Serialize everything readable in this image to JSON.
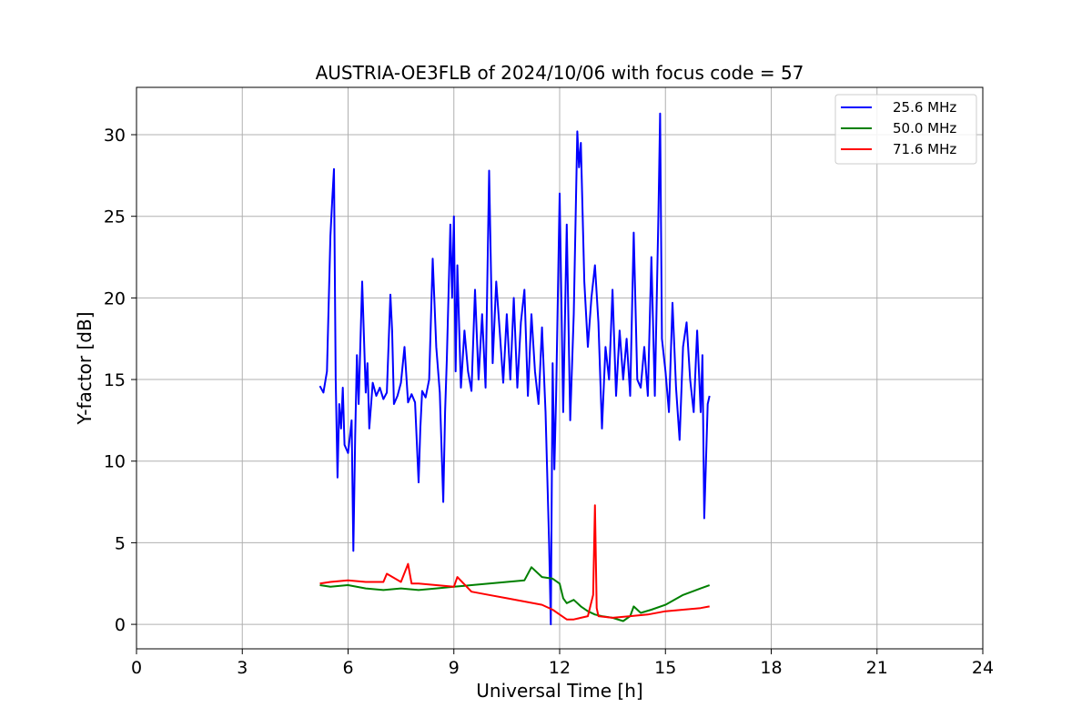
{
  "chart_data": {
    "type": "line",
    "title": "AUSTRIA-OE3FLB of 2024/10/06 with focus code = 57",
    "xlabel": "Universal Time [h]",
    "ylabel": "Y-factor [dB]",
    "xlim": [
      0,
      24
    ],
    "ylim": [
      -1.5,
      32.9
    ],
    "xticks": [
      0,
      3,
      6,
      9,
      12,
      15,
      18,
      21,
      24
    ],
    "yticks": [
      0,
      5,
      10,
      15,
      20,
      25,
      30
    ],
    "xtick_labels": [
      "0",
      "3",
      "6",
      "9",
      "12",
      "15",
      "18",
      "21",
      "24"
    ],
    "ytick_labels": [
      "0",
      "5",
      "10",
      "15",
      "20",
      "25",
      "30"
    ],
    "grid": true,
    "legend_position": "top-right",
    "series": [
      {
        "name": "25.6 MHz",
        "color": "#0000ff",
        "x": [
          5.2,
          5.3,
          5.4,
          5.5,
          5.55,
          5.6,
          5.65,
          5.7,
          5.75,
          5.8,
          5.85,
          5.9,
          6.0,
          6.1,
          6.15,
          6.2,
          6.25,
          6.3,
          6.4,
          6.5,
          6.55,
          6.6,
          6.7,
          6.8,
          6.9,
          7.0,
          7.1,
          7.2,
          7.25,
          7.3,
          7.4,
          7.5,
          7.6,
          7.7,
          7.8,
          7.9,
          8.0,
          8.05,
          8.1,
          8.2,
          8.3,
          8.4,
          8.5,
          8.6,
          8.7,
          8.75,
          8.8,
          8.9,
          8.95,
          9.0,
          9.05,
          9.1,
          9.2,
          9.3,
          9.4,
          9.5,
          9.6,
          9.7,
          9.8,
          9.9,
          10.0,
          10.1,
          10.2,
          10.3,
          10.4,
          10.5,
          10.6,
          10.7,
          10.8,
          10.9,
          11.0,
          11.1,
          11.2,
          11.3,
          11.4,
          11.5,
          11.6,
          11.7,
          11.75,
          11.8,
          11.85,
          11.9,
          12.0,
          12.1,
          12.2,
          12.3,
          12.4,
          12.5,
          12.55,
          12.6,
          12.7,
          12.8,
          12.9,
          13.0,
          13.1,
          13.2,
          13.3,
          13.4,
          13.5,
          13.6,
          13.7,
          13.8,
          13.9,
          14.0,
          14.1,
          14.2,
          14.3,
          14.4,
          14.5,
          14.6,
          14.7,
          14.8,
          14.85,
          14.9,
          15.0,
          15.1,
          15.2,
          15.3,
          15.4,
          15.5,
          15.6,
          15.7,
          15.8,
          15.9,
          16.0,
          16.05,
          16.1,
          16.2,
          16.25
        ],
        "values": [
          14.6,
          14.2,
          15.5,
          23.8,
          26.0,
          27.9,
          15.0,
          9.0,
          13.5,
          12.0,
          14.5,
          11.0,
          10.5,
          12.5,
          4.5,
          11.5,
          16.5,
          13.5,
          21.0,
          14.2,
          16.0,
          12.0,
          14.8,
          14.0,
          14.5,
          13.8,
          14.2,
          20.2,
          18.0,
          13.5,
          14.0,
          14.8,
          17.0,
          13.6,
          14.1,
          13.6,
          8.7,
          12.0,
          14.3,
          13.9,
          15.0,
          22.4,
          17.0,
          14.2,
          7.5,
          13.0,
          16.2,
          24.5,
          20.0,
          25.0,
          15.5,
          22.0,
          14.5,
          18.0,
          15.5,
          14.3,
          20.5,
          15.0,
          19.0,
          14.5,
          27.8,
          16.0,
          21.0,
          18.0,
          14.8,
          19.0,
          15.0,
          20.0,
          14.5,
          18.5,
          20.5,
          14.0,
          19.0,
          15.5,
          13.5,
          18.2,
          13.0,
          5.0,
          0.0,
          16.0,
          9.5,
          14.0,
          26.4,
          13.0,
          24.5,
          12.5,
          19.0,
          30.2,
          28.0,
          29.5,
          21.0,
          17.0,
          20.0,
          22.0,
          18.5,
          12.0,
          17.0,
          15.0,
          20.5,
          14.0,
          18.0,
          15.0,
          17.5,
          14.0,
          24.0,
          15.0,
          14.5,
          17.0,
          14.0,
          22.5,
          14.0,
          25.0,
          31.3,
          17.5,
          15.5,
          13.0,
          19.7,
          14.5,
          11.3,
          17.0,
          18.5,
          15.0,
          13.0,
          18.0,
          13.0,
          16.5,
          6.5,
          13.5,
          14.0
        ]
      },
      {
        "name": "50.0 MHz",
        "color": "#008000",
        "x": [
          5.2,
          5.5,
          6.0,
          6.5,
          7.0,
          7.5,
          8.0,
          8.5,
          9.0,
          9.5,
          10.0,
          10.5,
          11.0,
          11.2,
          11.5,
          11.8,
          12.0,
          12.1,
          12.2,
          12.4,
          12.6,
          12.8,
          13.0,
          13.2,
          13.5,
          13.8,
          14.0,
          14.1,
          14.3,
          14.6,
          15.0,
          15.5,
          16.0,
          16.25
        ],
        "values": [
          2.4,
          2.3,
          2.4,
          2.2,
          2.1,
          2.2,
          2.1,
          2.2,
          2.3,
          2.4,
          2.5,
          2.6,
          2.7,
          3.5,
          2.9,
          2.8,
          2.5,
          1.6,
          1.3,
          1.5,
          1.1,
          0.8,
          0.6,
          0.5,
          0.4,
          0.2,
          0.5,
          1.1,
          0.7,
          0.9,
          1.2,
          1.8,
          2.2,
          2.4
        ]
      },
      {
        "name": "71.6 MHz",
        "color": "#ff0000",
        "x": [
          5.2,
          5.5,
          6.0,
          6.5,
          7.0,
          7.1,
          7.5,
          7.7,
          7.8,
          8.0,
          8.5,
          9.0,
          9.1,
          9.5,
          10.0,
          10.5,
          11.0,
          11.5,
          11.8,
          12.0,
          12.2,
          12.4,
          12.6,
          12.8,
          12.95,
          13.0,
          13.05,
          13.1,
          13.5,
          14.0,
          14.5,
          15.0,
          15.5,
          16.0,
          16.25
        ],
        "values": [
          2.5,
          2.6,
          2.7,
          2.6,
          2.6,
          3.1,
          2.6,
          3.7,
          2.5,
          2.5,
          2.4,
          2.3,
          2.9,
          2.0,
          1.8,
          1.6,
          1.4,
          1.2,
          0.9,
          0.6,
          0.3,
          0.3,
          0.4,
          0.5,
          1.8,
          7.3,
          1.0,
          0.5,
          0.4,
          0.5,
          0.6,
          0.8,
          0.9,
          1.0,
          1.1
        ]
      }
    ]
  }
}
